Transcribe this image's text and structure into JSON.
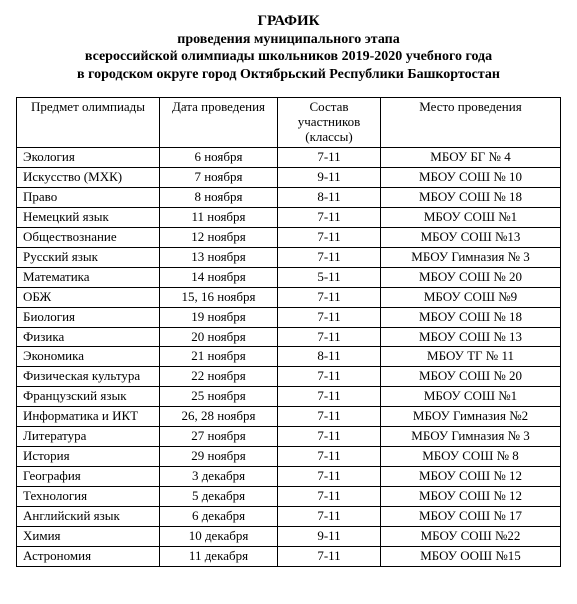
{
  "title": {
    "line1": "ГРАФИК",
    "line2": "проведения муниципального этапа",
    "line3": "всероссийской олимпиады школьников 2019-2020 учебного года",
    "line4": "в городском округе город Октябрьский Республики Башкортостан"
  },
  "table": {
    "columns": {
      "subject": "Предмет олимпиады",
      "date": "Дата проведения",
      "grades": "Состав участников (классы)",
      "venue": "Место проведения"
    },
    "rows": [
      {
        "subject": "Экология",
        "date": "6 ноября",
        "grades": "7-11",
        "venue": "МБОУ БГ № 4"
      },
      {
        "subject": "Искусство (МХК)",
        "date": "7 ноября",
        "grades": "9-11",
        "venue": "МБОУ СОШ № 10"
      },
      {
        "subject": "Право",
        "date": "8 ноября",
        "grades": "8-11",
        "venue": "МБОУ СОШ № 18"
      },
      {
        "subject": "Немецкий язык",
        "date": "11 ноября",
        "grades": "7-11",
        "venue": "МБОУ СОШ №1"
      },
      {
        "subject": "Обществознание",
        "date": "12 ноября",
        "grades": "7-11",
        "venue": "МБОУ СОШ №13"
      },
      {
        "subject": "Русский язык",
        "date": "13 ноября",
        "grades": "7-11",
        "venue": "МБОУ Гимназия № 3"
      },
      {
        "subject": "Математика",
        "date": "14 ноября",
        "grades": "5-11",
        "venue": "МБОУ СОШ № 20"
      },
      {
        "subject": "ОБЖ",
        "date": "15, 16 ноября",
        "grades": "7-11",
        "venue": "МБОУ СОШ №9"
      },
      {
        "subject": "Биология",
        "date": "19 ноября",
        "grades": "7-11",
        "venue": "МБОУ СОШ № 18"
      },
      {
        "subject": "Физика",
        "date": "20 ноября",
        "grades": "7-11",
        "venue": "МБОУ СОШ № 13"
      },
      {
        "subject": "Экономика",
        "date": "21 ноября",
        "grades": "8-11",
        "venue": "МБОУ ТГ № 11"
      },
      {
        "subject": "Физическая культура",
        "date": "22 ноября",
        "grades": "7-11",
        "venue": "МБОУ СОШ № 20"
      },
      {
        "subject": "Французский язык",
        "date": "25 ноября",
        "grades": "7-11",
        "venue": "МБОУ СОШ №1"
      },
      {
        "subject": "Информатика и ИКТ",
        "date": "26, 28 ноября",
        "grades": "7-11",
        "venue": "МБОУ Гимназия №2"
      },
      {
        "subject": "Литература",
        "date": "27 ноября",
        "grades": "7-11",
        "venue": "МБОУ Гимназия № 3"
      },
      {
        "subject": "История",
        "date": "29 ноября",
        "grades": "7-11",
        "venue": "МБОУ СОШ № 8"
      },
      {
        "subject": "География",
        "date": "3 декабря",
        "grades": "7-11",
        "venue": "МБОУ СОШ № 12"
      },
      {
        "subject": "Технология",
        "date": "5 декабря",
        "grades": "7-11",
        "venue": "МБОУ СОШ № 12"
      },
      {
        "subject": "Английский язык",
        "date": "6 декабря",
        "grades": "7-11",
        "venue": "МБОУ СОШ № 17"
      },
      {
        "subject": "Химия",
        "date": "10 декабря",
        "grades": "9-11",
        "venue": "МБОУ СОШ №22"
      },
      {
        "subject": "Астрономия",
        "date": "11 декабря",
        "grades": "7-11",
        "venue": "МБОУ ООШ №15"
      }
    ]
  },
  "style": {
    "background_color": "#ffffff",
    "text_color": "#000000",
    "border_color": "#000000",
    "font_family": "Times New Roman",
    "title_fontsize": 15,
    "body_fontsize": 13
  }
}
